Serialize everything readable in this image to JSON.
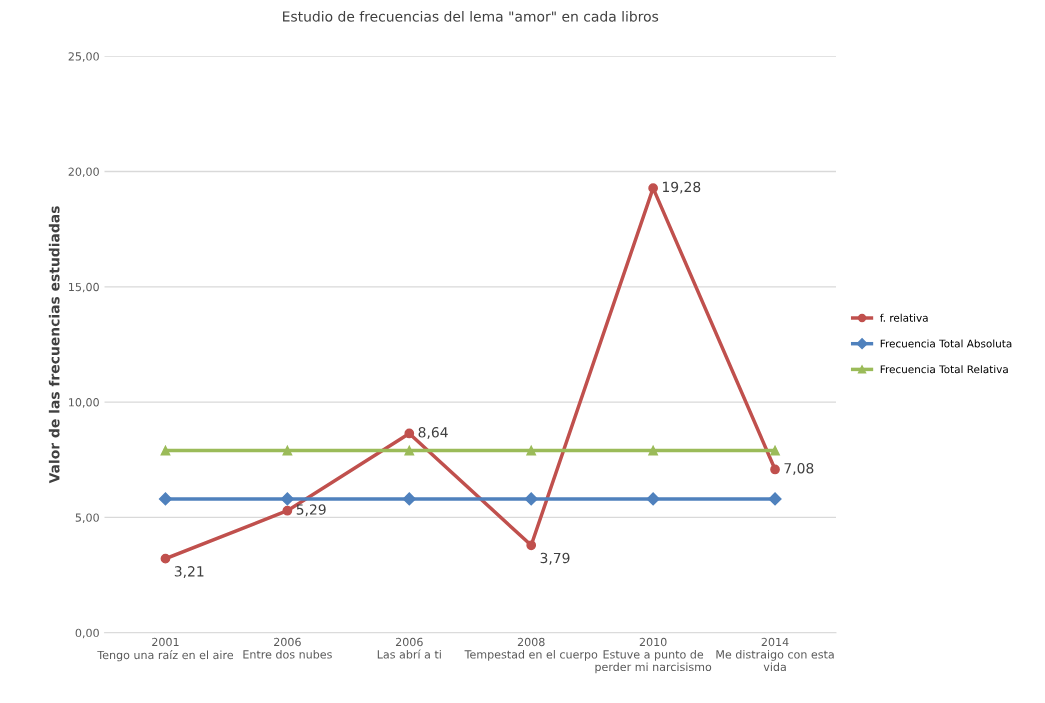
{
  "chart_data": {
    "type": "line",
    "title": "Estudio de frecuencias del lema \"amor\" en cada libros",
    "ylabel": "Valor de las frecuencias estudiadas",
    "categories": [
      "2001\nTengo una raíz en el aire",
      "2006\nEntre dos nubes",
      "2006\nLas abrí a ti",
      "2008\nTempestad en el cuerpo",
      "2010\nEstuve a punto de\nperder mi narcisismo",
      "2014\nMe distraigo con esta\nvida"
    ],
    "series": [
      {
        "name": "f. relativa",
        "color": "#c0504d",
        "marker": "circle",
        "values": [
          3.21,
          5.29,
          8.64,
          3.79,
          19.28,
          7.08
        ],
        "value_labels": [
          "3,21",
          "5,29",
          "8,64",
          "3,79",
          "19,28",
          "7,08"
        ]
      },
      {
        "name": "Frecuencia Total Absoluta",
        "color": "#4f81bd",
        "marker": "diamond",
        "values": [
          5.8,
          5.8,
          5.8,
          5.8,
          5.8,
          5.8
        ]
      },
      {
        "name": "Frecuencia Total Relativa",
        "color": "#9bbb59",
        "marker": "triangle",
        "values": [
          7.9,
          7.9,
          7.9,
          7.9,
          7.9,
          7.9
        ]
      }
    ],
    "ylim": [
      0,
      25
    ],
    "yticks": [
      {
        "value": 0,
        "label": "0,00"
      },
      {
        "value": 5,
        "label": "5,00"
      },
      {
        "value": 10,
        "label": "10,00"
      },
      {
        "value": 15,
        "label": "15,00"
      },
      {
        "value": 20,
        "label": "20,00"
      },
      {
        "value": 25,
        "label": "25,00"
      }
    ],
    "grid": "y",
    "legend": "right"
  }
}
